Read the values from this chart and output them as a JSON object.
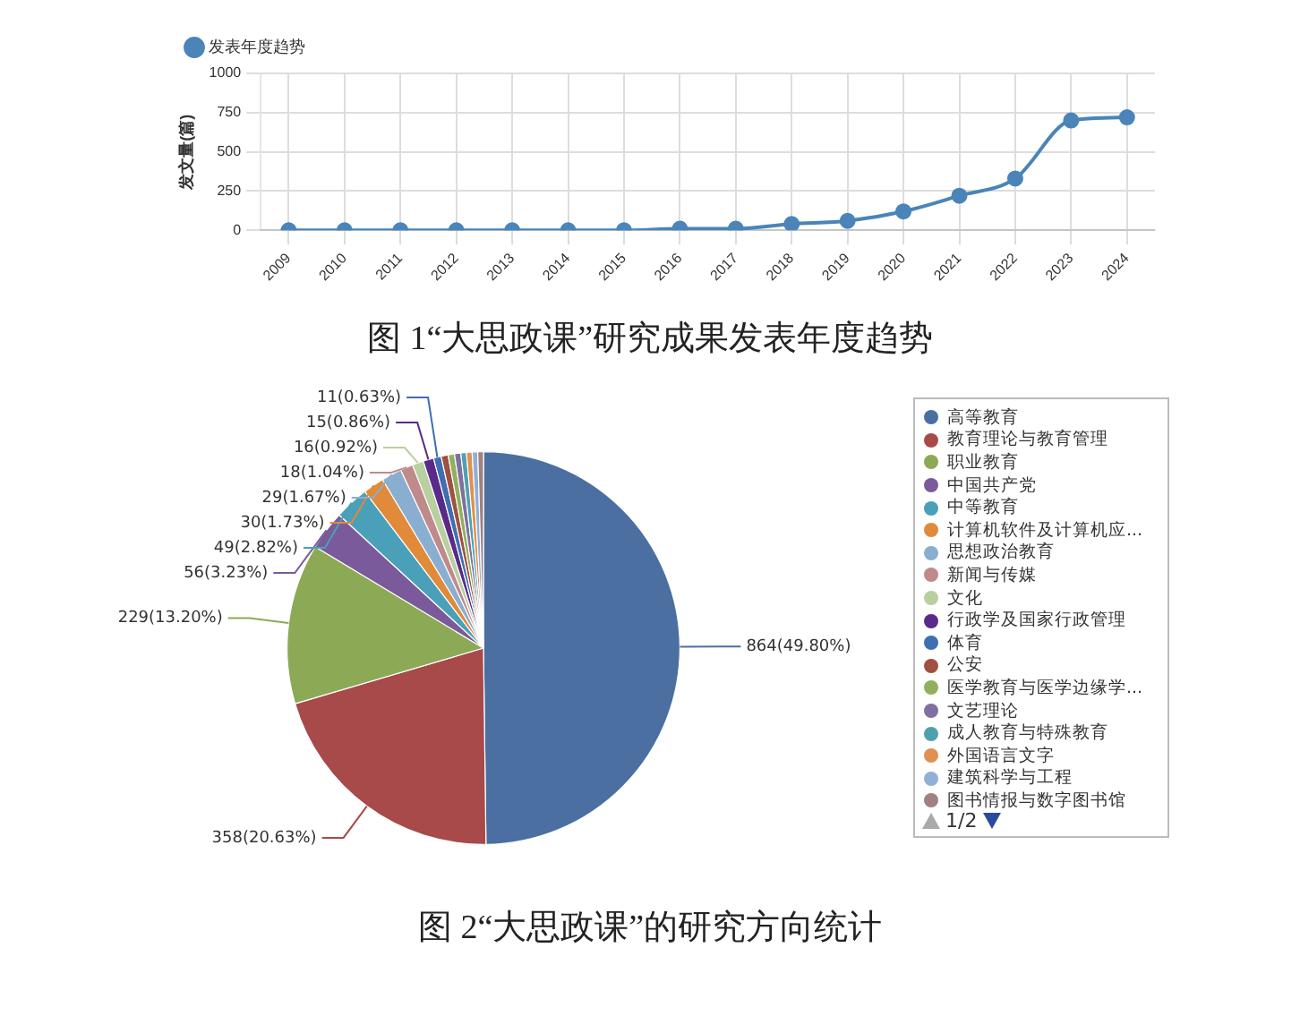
{
  "chart_data": [
    {
      "type": "line",
      "title": "图 1“大思政课”研究成果发表年度趋势",
      "ylabel": "发文量(篇)",
      "categories": [
        "2009",
        "2010",
        "2011",
        "2012",
        "2013",
        "2014",
        "2015",
        "2016",
        "2017",
        "2018",
        "2019",
        "2020",
        "2021",
        "2022",
        "2023",
        "2024"
      ],
      "series": [
        {
          "name": "发表年度趋势",
          "color": "#4a84b8",
          "values": [
            0,
            0,
            0,
            0,
            0,
            0,
            0,
            10,
            10,
            40,
            60,
            120,
            220,
            330,
            700,
            720
          ]
        }
      ],
      "ylim": [
        0,
        1000
      ],
      "yticks": [
        0,
        250,
        500,
        750,
        1000
      ],
      "grid": true,
      "legend": "top left",
      "marker": "circle",
      "line_style": "solid"
    },
    {
      "type": "pie",
      "title": "图 2“大思政课”的研究方向统计",
      "categories": [
        "高等教育",
        "教育理论与教育管理",
        "职业教育",
        "中国共产党",
        "中等教育",
        "计算机软件及计算机应...",
        "思想政治教育",
        "新闻与传媒",
        "文化",
        "行政学及国家行政管理",
        "体育",
        "公安",
        "医学教育与医学边缘学...",
        "文艺理论",
        "成人教育与特殊教育",
        "外国语言文字",
        "建筑科学与工程",
        "图书情报与数字图书馆"
      ],
      "values": [
        864,
        358,
        229,
        56,
        49,
        30,
        29,
        18,
        16,
        15,
        11,
        10,
        9,
        9,
        8,
        8,
        8,
        8
      ],
      "colors": [
        "#4a6fa0",
        "#a84a4a",
        "#8caa55",
        "#7a5a9a",
        "#4aa0b8",
        "#e08a3a",
        "#8aaed0",
        "#c08a8a",
        "#b8d0a0",
        "#5a2a8a",
        "#3f6fb0",
        "#a05040",
        "#90b060",
        "#8070a0",
        "#50a0b0",
        "#e09050",
        "#90b0d8",
        "#a08080"
      ],
      "value_labels": [
        "864(49.80%)",
        "358(20.63%)",
        "229(13.20%)",
        "56(3.23%)",
        "49(2.82%)",
        "30(1.73%)",
        "29(1.67%)",
        "18(1.04%)",
        "16(0.92%)",
        "15(0.86%)",
        "11(0.63%)",
        null,
        null,
        null,
        null,
        null,
        null,
        null
      ],
      "legend": "right",
      "annotations": [
        "1/2"
      ]
    }
  ]
}
